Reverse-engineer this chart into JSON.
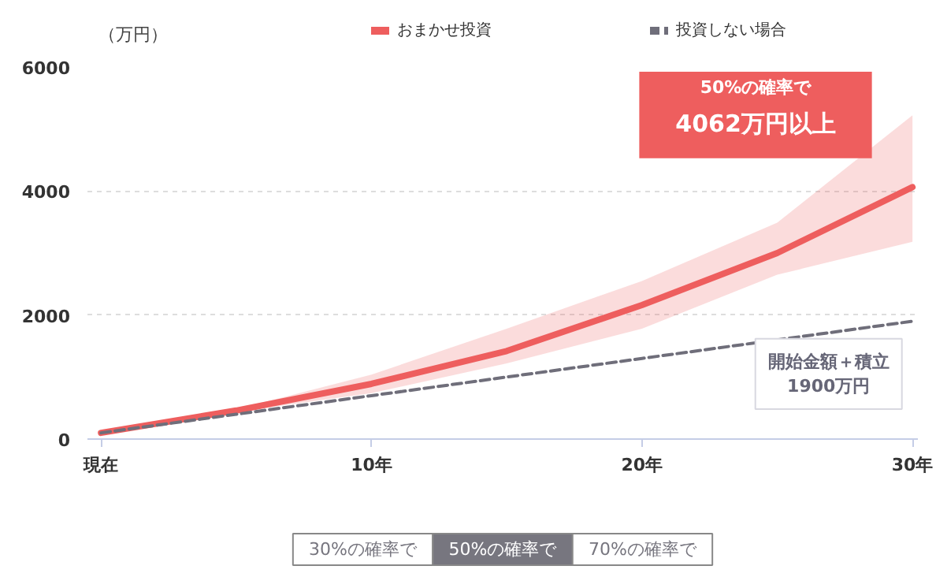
{
  "chart_data": {
    "type": "line",
    "ylabel": "（万円）",
    "x": [
      0,
      5,
      10,
      15,
      20,
      25,
      30
    ],
    "xlim": [
      -0.5,
      30.2
    ],
    "xticks": [
      {
        "value": 0,
        "label": "現在"
      },
      {
        "value": 10,
        "label": "10年"
      },
      {
        "value": 20,
        "label": "20年"
      },
      {
        "value": 30,
        "label": "30年"
      }
    ],
    "ylim": [
      0,
      6000
    ],
    "yticks": [
      0,
      2000,
      4000,
      6000
    ],
    "series": [
      {
        "name": "おまかせ投資",
        "color": "#ee5e5e",
        "values": [
          100,
          460,
          890,
          1420,
          2160,
          3000,
          4062
        ],
        "lower": [
          100,
          440,
          740,
          1220,
          1780,
          2650,
          3180
        ],
        "upper": [
          100,
          480,
          1040,
          1780,
          2550,
          3490,
          5220
        ]
      },
      {
        "name": "投資しない場合",
        "color": "#6f6e7a",
        "line_style": "dashed",
        "values": [
          100,
          400,
          700,
          1000,
          1300,
          1600,
          1900
        ]
      }
    ],
    "grid": "y",
    "legend": "top",
    "annotations": [
      "50%の確率で",
      "4062万円以上",
      "開始金額＋積立\n1900万円",
      "30%の確率で",
      "50%の確率で",
      "70%の確率で"
    ]
  }
}
